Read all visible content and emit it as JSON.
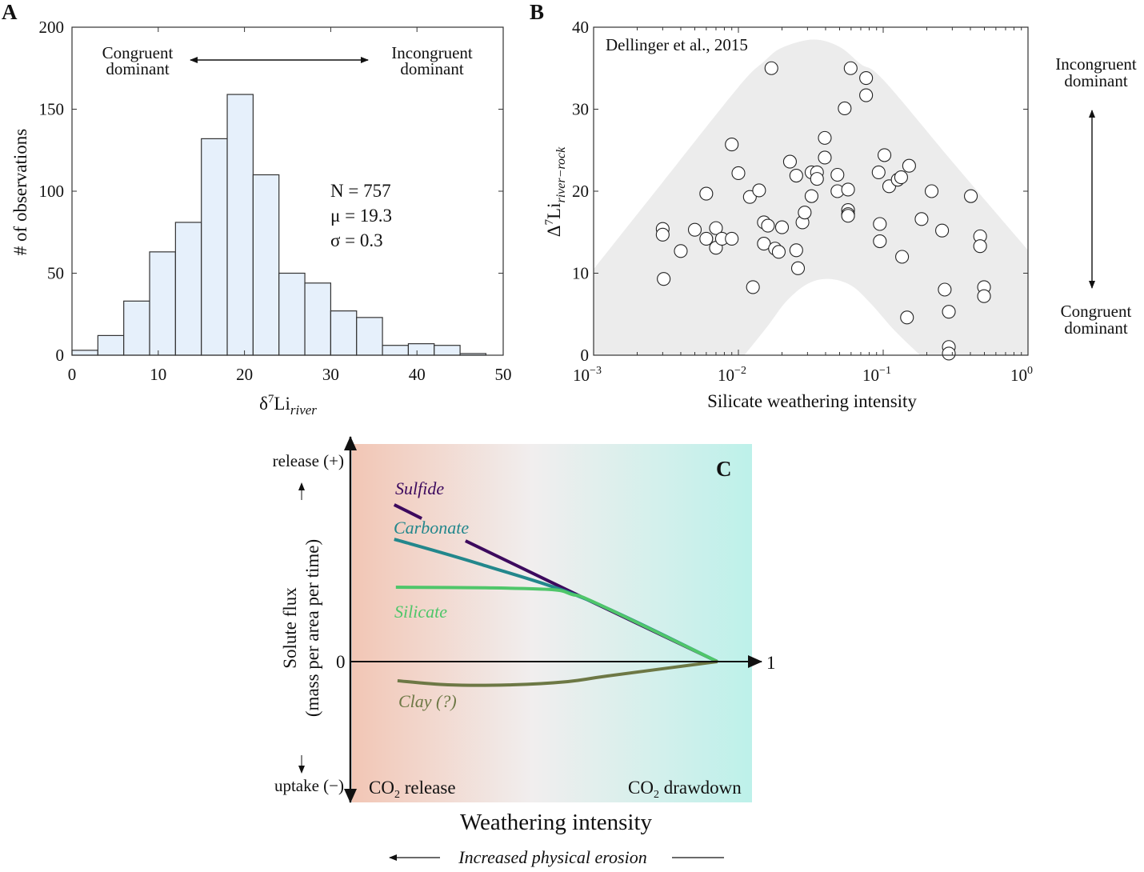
{
  "chart_data": [
    {
      "panel": "A",
      "type": "bar",
      "subtype": "histogram",
      "bin_edges": [
        0,
        3,
        6,
        9,
        12,
        15,
        18,
        21,
        24,
        27,
        30,
        33,
        36,
        39,
        42,
        45,
        48
      ],
      "values": [
        3,
        12,
        33,
        63,
        81,
        132,
        159,
        110,
        50,
        44,
        27,
        23,
        6,
        7,
        6,
        1
      ],
      "xlim": [
        0,
        50
      ],
      "ylim": [
        0,
        200
      ],
      "xticks": [
        "0",
        "10",
        "20",
        "30",
        "40",
        "50"
      ],
      "yticks": [
        "0",
        "50",
        "100",
        "150",
        "200"
      ],
      "xlabel": {
        "base": "δ",
        "sup": "7",
        "main": "Li",
        "sub": "river"
      },
      "ylabel": "# of observations",
      "annotation_left": [
        "Congruent",
        "dominant"
      ],
      "annotation_right": [
        "Incongruent",
        "dominant"
      ],
      "stats": [
        "N = 757",
        "μ = 19.3",
        "σ = 0.3"
      ],
      "colors": {
        "fill": "#e6f0fb",
        "edge": "#333333"
      },
      "grid": false
    },
    {
      "panel": "B",
      "type": "scatter",
      "xscale": "log",
      "xlim": [
        0.001,
        1
      ],
      "ylim": [
        0,
        40
      ],
      "xticks": [
        {
          "base": "10",
          "exp": "−3"
        },
        {
          "base": "10",
          "exp": "−2"
        },
        {
          "base": "10",
          "exp": "−1"
        },
        {
          "base": "10",
          "exp": "0"
        }
      ],
      "yticks": [
        "0",
        "10",
        "20",
        "30",
        "40"
      ],
      "xlabel": "Silicate weathering intensity",
      "ylabel": {
        "main": "Δ",
        "sup": "7",
        "rest": "Li",
        "sub": "river−rock"
      },
      "source": "Dellinger et al., 2015",
      "side_top": [
        "Incongruent",
        "dominant"
      ],
      "side_bottom": [
        "Congruent",
        "dominant"
      ],
      "grid": false,
      "envelope": {
        "color": "#ececec",
        "upper": [
          [
            0.001,
            10.5
          ],
          [
            0.003,
            21.1
          ],
          [
            0.01,
            32.7
          ],
          [
            0.015,
            35.8
          ],
          [
            0.02,
            37.5
          ],
          [
            0.033,
            38.5
          ],
          [
            0.05,
            37.6
          ],
          [
            0.07,
            35.5
          ],
          [
            0.1,
            33.6
          ],
          [
            0.3,
            23.6
          ],
          [
            1,
            12.8
          ]
        ],
        "lower": [
          [
            0.011,
            0
          ],
          [
            0.016,
            3.6
          ],
          [
            0.0215,
            6.6
          ],
          [
            0.03,
            8.7
          ],
          [
            0.042,
            9.3
          ],
          [
            0.06,
            8.5
          ],
          [
            0.082,
            6.3
          ],
          [
            0.12,
            3
          ],
          [
            0.18,
            0
          ]
        ]
      },
      "points": [
        [
          0.003,
          15.4
        ],
        [
          0.003,
          14.7
        ],
        [
          0.00305,
          9.3
        ],
        [
          0.004,
          12.7
        ],
        [
          0.005,
          15.3
        ],
        [
          0.006,
          14.2
        ],
        [
          0.006,
          19.7
        ],
        [
          0.007,
          15.5
        ],
        [
          0.007,
          13.1
        ],
        [
          0.0077,
          14.2
        ],
        [
          0.009,
          14.2
        ],
        [
          0.009,
          25.7
        ],
        [
          0.01,
          22.2
        ],
        [
          0.012,
          19.3
        ],
        [
          0.0126,
          8.3
        ],
        [
          0.0139,
          20.1
        ],
        [
          0.015,
          16.2
        ],
        [
          0.015,
          13.6
        ],
        [
          0.016,
          15.8
        ],
        [
          0.0169,
          35.0
        ],
        [
          0.0179,
          13.0
        ],
        [
          0.019,
          12.6
        ],
        [
          0.02,
          15.6
        ],
        [
          0.0227,
          23.6
        ],
        [
          0.0251,
          21.9
        ],
        [
          0.0251,
          12.8
        ],
        [
          0.0258,
          10.6
        ],
        [
          0.0277,
          16.2
        ],
        [
          0.0287,
          17.4
        ],
        [
          0.032,
          22.3
        ],
        [
          0.0349,
          22.3
        ],
        [
          0.0349,
          21.5
        ],
        [
          0.032,
          19.4
        ],
        [
          0.0395,
          26.5
        ],
        [
          0.0395,
          24.1
        ],
        [
          0.0483,
          22.0
        ],
        [
          0.0483,
          20.0
        ],
        [
          0.0542,
          30.1
        ],
        [
          0.0572,
          20.2
        ],
        [
          0.0572,
          17.7
        ],
        [
          0.0572,
          17.2
        ],
        [
          0.0572,
          17.0
        ],
        [
          0.0596,
          35.0
        ],
        [
          0.0762,
          33.8
        ],
        [
          0.0762,
          31.7
        ],
        [
          0.093,
          22.3
        ],
        [
          0.0948,
          16.0
        ],
        [
          0.0948,
          13.9
        ],
        [
          0.102,
          24.4
        ],
        [
          0.11,
          20.6
        ],
        [
          0.126,
          21.4
        ],
        [
          0.133,
          21.7
        ],
        [
          0.135,
          12.0
        ],
        [
          0.146,
          4.6
        ],
        [
          0.151,
          23.1
        ],
        [
          0.184,
          16.6
        ],
        [
          0.216,
          20.0
        ],
        [
          0.255,
          15.2
        ],
        [
          0.266,
          8.0
        ],
        [
          0.284,
          5.3
        ],
        [
          0.284,
          1.0
        ],
        [
          0.284,
          0.2
        ],
        [
          0.403,
          19.4
        ],
        [
          0.467,
          14.5
        ],
        [
          0.467,
          13.3
        ],
        [
          0.497,
          8.3
        ],
        [
          0.497,
          7.2
        ]
      ]
    },
    {
      "panel": "C",
      "type": "line",
      "xlim": [
        0,
        1
      ],
      "xticks": [
        "1"
      ],
      "yticks": [
        "0"
      ],
      "xlabel": "Weathering intensity",
      "ylabel": [
        "Solute flux",
        "(mass per area per time)"
      ],
      "y_top_label": "release (+)",
      "y_bottom_label": "uptake (−)",
      "region_left": {
        "main": "CO",
        "sub": "2",
        "rest": " release"
      },
      "region_right": {
        "main": "CO",
        "sub": "2",
        "rest": " drawdown"
      },
      "background_gradient": [
        "#f2c6b5",
        "#f1eeee",
        "#bdf1ea"
      ],
      "bottom_note": "Increased physical erosion",
      "series": [
        {
          "name": "Sulfide",
          "color": "#3d0a5e",
          "segments": [
            [
              [
                0.107,
                0.778
              ],
              [
                0.174,
                0.71
              ]
            ],
            [
              [
                0.281,
                0.599
              ],
              [
                0.58,
                0.306
              ],
              [
                0.896,
                0
              ]
            ]
          ]
        },
        {
          "name": "Carbonate",
          "color": "#23878c",
          "segments": [
            [
              [
                0.107,
                0.607
              ],
              [
                0.316,
                0.484
              ],
              [
                0.58,
                0.306
              ],
              [
                0.896,
                0
              ]
            ]
          ]
        },
        {
          "name": "Silicate",
          "color": "#4fc66a",
          "segments": [
            [
              [
                0.111,
                0.369
              ],
              [
                0.33,
                0.366
              ],
              [
                0.492,
                0.357
              ],
              [
                0.541,
                0.333
              ],
              [
                0.6,
                0.29
              ],
              [
                0.896,
                0
              ]
            ]
          ]
        },
        {
          "name": "Clay (?)",
          "color": "#6d7845",
          "segments": [
            [
              [
                0.115,
                -0.095
              ],
              [
                0.238,
                -0.115
              ],
              [
                0.395,
                -0.115
              ],
              [
                0.531,
                -0.099
              ],
              [
                0.629,
                -0.071
              ],
              [
                0.896,
                0
              ]
            ]
          ]
        }
      ]
    }
  ]
}
